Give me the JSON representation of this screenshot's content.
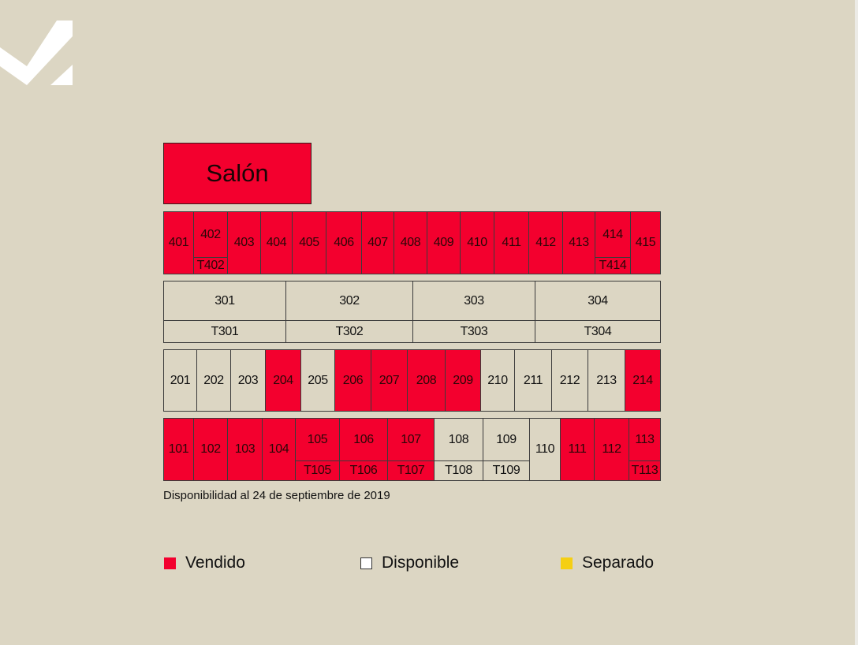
{
  "salon_label": "Salón",
  "colors": {
    "vendido": "#f3002e",
    "disponible": "#dcd6c3",
    "separado": "#f5cf13",
    "background": "#dcd6c3"
  },
  "floor4": [
    {
      "label": "401",
      "status": "vendido"
    },
    {
      "label": "402",
      "sub": "T402",
      "status": "vendido"
    },
    {
      "label": "403",
      "status": "vendido"
    },
    {
      "label": "404",
      "status": "vendido"
    },
    {
      "label": "405",
      "status": "vendido"
    },
    {
      "label": "406",
      "status": "vendido"
    },
    {
      "label": "407",
      "status": "vendido"
    },
    {
      "label": "408",
      "status": "vendido"
    },
    {
      "label": "409",
      "status": "vendido"
    },
    {
      "label": "410",
      "status": "vendido"
    },
    {
      "label": "411",
      "status": "vendido"
    },
    {
      "label": "412",
      "status": "vendido"
    },
    {
      "label": "413",
      "status": "vendido"
    },
    {
      "label": "414",
      "sub": "T414",
      "status": "vendido"
    },
    {
      "label": "415",
      "status": "vendido"
    }
  ],
  "floor3": [
    {
      "label": "301",
      "sub": "T301",
      "status": "disponible"
    },
    {
      "label": "302",
      "sub": "T302",
      "status": "disponible"
    },
    {
      "label": "303",
      "sub": "T303",
      "status": "disponible"
    },
    {
      "label": "304",
      "sub": "T304",
      "status": "disponible"
    }
  ],
  "floor2": [
    {
      "label": "201",
      "status": "disponible"
    },
    {
      "label": "202",
      "status": "disponible"
    },
    {
      "label": "203",
      "status": "disponible"
    },
    {
      "label": "204",
      "status": "vendido"
    },
    {
      "label": "205",
      "status": "disponible"
    },
    {
      "label": "206",
      "status": "vendido"
    },
    {
      "label": "207",
      "status": "vendido"
    },
    {
      "label": "208",
      "status": "vendido"
    },
    {
      "label": "209",
      "status": "vendido"
    },
    {
      "label": "210",
      "status": "disponible"
    },
    {
      "label": "211",
      "status": "disponible"
    },
    {
      "label": "212",
      "status": "disponible"
    },
    {
      "label": "213",
      "status": "disponible"
    },
    {
      "label": "214",
      "status": "vendido"
    }
  ],
  "floor1": [
    {
      "label": "101",
      "status": "vendido"
    },
    {
      "label": "102",
      "status": "vendido"
    },
    {
      "label": "103",
      "status": "vendido"
    },
    {
      "label": "104",
      "status": "vendido"
    },
    {
      "label": "105",
      "sub": "T105",
      "status": "vendido"
    },
    {
      "label": "106",
      "sub": "T106",
      "status": "vendido"
    },
    {
      "label": "107",
      "sub": "T107",
      "status": "vendido"
    },
    {
      "label": "108",
      "sub": "T108",
      "status": "disponible"
    },
    {
      "label": "109",
      "sub": "T109",
      "status": "disponible"
    },
    {
      "label": "110",
      "status": "disponible"
    },
    {
      "label": "111",
      "status": "vendido"
    },
    {
      "label": "112",
      "status": "vendido"
    },
    {
      "label": "113",
      "sub": "T113",
      "status": "vendido"
    }
  ],
  "caption": "Disponibilidad al 24 de septiembre de 2019",
  "legend": {
    "vendido": "Vendido",
    "disponible": "Disponible",
    "separado": "Separado"
  }
}
